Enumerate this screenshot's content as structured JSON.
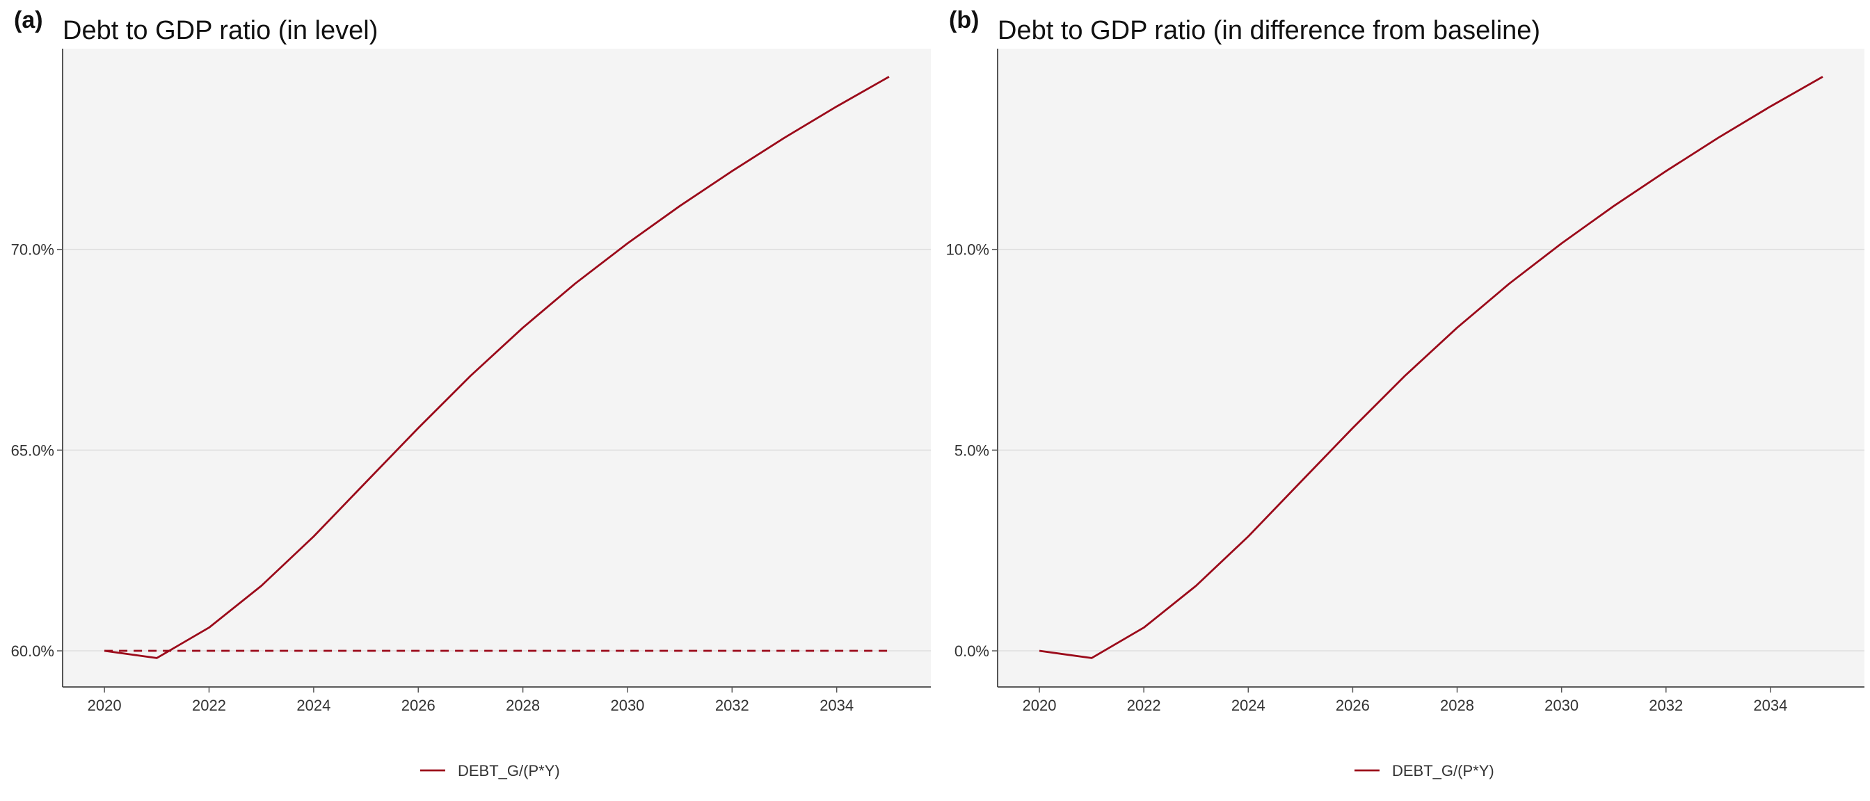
{
  "chart_data": [
    {
      "type": "line",
      "panel_label": "(a)",
      "title": "Debt to GDP ratio (in level)",
      "xlabel": "",
      "ylabel": "",
      "x": [
        2020,
        2021,
        2022,
        2023,
        2024,
        2025,
        2026,
        2027,
        2028,
        2029,
        2030,
        2031,
        2032,
        2033,
        2034,
        2035
      ],
      "series": [
        {
          "name": "DEBT_G/(P*Y)",
          "style": "solid",
          "color": "#9b0a1a",
          "values": [
            60.0,
            59.82,
            60.58,
            61.62,
            62.85,
            64.2,
            65.55,
            66.85,
            68.05,
            69.15,
            70.15,
            71.08,
            71.95,
            72.78,
            73.56,
            74.3
          ]
        },
        {
          "style": "dashed",
          "color": "#9b0a1a",
          "values": [
            60.0,
            60.0,
            60.0,
            60.0,
            60.0,
            60.0,
            60.0,
            60.0,
            60.0,
            60.0,
            60.0,
            60.0,
            60.0,
            60.0,
            60.0,
            60.0
          ]
        }
      ],
      "xticks": [
        2020,
        2022,
        2024,
        2026,
        2028,
        2030,
        2032,
        2034
      ],
      "xtick_labels": [
        "2020",
        "2022",
        "2024",
        "2026",
        "2028",
        "2030",
        "2032",
        "2034"
      ],
      "yticks": [
        60,
        65,
        70
      ],
      "ytick_labels": [
        "60.0%",
        "65.0%",
        "70.0%"
      ],
      "xlim": [
        2019.2,
        2035.8
      ],
      "ylim": [
        59.1,
        75.0
      ],
      "grid": true,
      "legend": {
        "placement": "bottom-center",
        "entries": [
          "DEBT_G/(P*Y)"
        ]
      }
    },
    {
      "type": "line",
      "panel_label": "(b)",
      "title": "Debt to GDP ratio (in difference from baseline)",
      "xlabel": "",
      "ylabel": "",
      "x": [
        2020,
        2021,
        2022,
        2023,
        2024,
        2025,
        2026,
        2027,
        2028,
        2029,
        2030,
        2031,
        2032,
        2033,
        2034,
        2035
      ],
      "series": [
        {
          "name": "DEBT_G/(P*Y)",
          "style": "solid",
          "color": "#9b0a1a",
          "values": [
            0.0,
            -0.18,
            0.58,
            1.62,
            2.85,
            4.2,
            5.55,
            6.85,
            8.05,
            9.15,
            10.15,
            11.08,
            11.95,
            12.78,
            13.56,
            14.3
          ]
        }
      ],
      "xticks": [
        2020,
        2022,
        2024,
        2026,
        2028,
        2030,
        2032,
        2034
      ],
      "xtick_labels": [
        "2020",
        "2022",
        "2024",
        "2026",
        "2028",
        "2030",
        "2032",
        "2034"
      ],
      "yticks": [
        0,
        5,
        10
      ],
      "ytick_labels": [
        "0.0%",
        "5.0%",
        "10.0%"
      ],
      "xlim": [
        2019.2,
        2035.8
      ],
      "ylim": [
        -0.9,
        15.0
      ],
      "grid": true,
      "legend": {
        "placement": "bottom-center",
        "entries": [
          "DEBT_G/(P*Y)"
        ]
      }
    }
  ]
}
